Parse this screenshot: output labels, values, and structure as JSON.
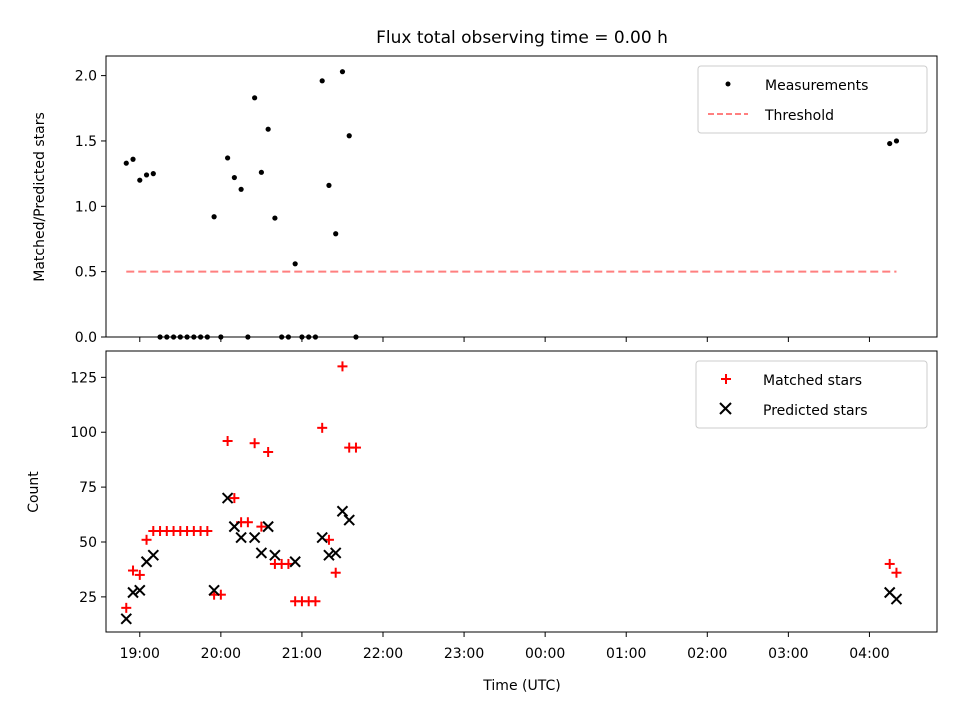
{
  "figure": {
    "title": "Flux total observing time = 0.00 h",
    "xlabel": "Time (UTC)"
  },
  "colors": {
    "measurement": "#000000",
    "threshold": "#ff7f7f",
    "matched": "#ff0000",
    "predicted": "#000000"
  },
  "chart_data": [
    {
      "type": "scatter",
      "title": "Flux total observing time = 0.00 h",
      "xlabel": "",
      "ylabel": "Matched/Predicted stars",
      "xlim": [
        "18:35",
        "04:50"
      ],
      "ylim": [
        0,
        2.15
      ],
      "yticks": [
        "0.0",
        "0.5",
        "1.0",
        "1.5",
        "2.0"
      ],
      "legend_position": "top-right",
      "series": [
        {
          "name": "Measurements",
          "marker": "dot",
          "points": [
            [
              "18:50",
              1.33
            ],
            [
              "18:55",
              1.36
            ],
            [
              "19:00",
              1.2
            ],
            [
              "19:05",
              1.24
            ],
            [
              "19:10",
              1.25
            ],
            [
              "19:15",
              0
            ],
            [
              "19:20",
              0
            ],
            [
              "19:25",
              0
            ],
            [
              "19:30",
              0
            ],
            [
              "19:35",
              0
            ],
            [
              "19:40",
              0
            ],
            [
              "19:45",
              0
            ],
            [
              "19:50",
              0
            ],
            [
              "19:55",
              0.92
            ],
            [
              "20:00",
              0
            ],
            [
              "20:05",
              1.37
            ],
            [
              "20:10",
              1.22
            ],
            [
              "20:15",
              1.13
            ],
            [
              "20:20",
              0
            ],
            [
              "20:25",
              1.83
            ],
            [
              "20:30",
              1.26
            ],
            [
              "20:35",
              1.59
            ],
            [
              "20:40",
              0.91
            ],
            [
              "20:45",
              0
            ],
            [
              "20:50",
              0
            ],
            [
              "20:55",
              0.56
            ],
            [
              "21:00",
              0
            ],
            [
              "21:05",
              0
            ],
            [
              "21:10",
              0
            ],
            [
              "21:15",
              1.96
            ],
            [
              "21:20",
              1.16
            ],
            [
              "21:25",
              0.79
            ],
            [
              "21:30",
              2.03
            ],
            [
              "21:35",
              1.54
            ],
            [
              "21:40",
              0
            ],
            [
              "04:15",
              1.48
            ],
            [
              "04:20",
              1.5
            ]
          ]
        },
        {
          "name": "Threshold",
          "marker": "dashed-line",
          "points": [
            [
              "18:50",
              0.5
            ],
            [
              "04:20",
              0.5
            ]
          ]
        }
      ]
    },
    {
      "type": "scatter",
      "xlabel": "Time (UTC)",
      "ylabel": "Count",
      "xlim": [
        "18:35",
        "04:50"
      ],
      "ylim": [
        9,
        137
      ],
      "yticks": [
        "25",
        "50",
        "75",
        "100",
        "125"
      ],
      "xticks": [
        "19:00",
        "20:00",
        "21:00",
        "22:00",
        "23:00",
        "00:00",
        "01:00",
        "02:00",
        "03:00",
        "04:00"
      ],
      "legend_position": "top-right",
      "series": [
        {
          "name": "Matched stars",
          "marker": "plus",
          "points": [
            [
              "18:50",
              20
            ],
            [
              "18:55",
              37
            ],
            [
              "19:00",
              35
            ],
            [
              "19:05",
              51
            ],
            [
              "19:10",
              55
            ],
            [
              "19:15",
              55
            ],
            [
              "19:20",
              55
            ],
            [
              "19:25",
              55
            ],
            [
              "19:30",
              55
            ],
            [
              "19:35",
              55
            ],
            [
              "19:40",
              55
            ],
            [
              "19:45",
              55
            ],
            [
              "19:50",
              55
            ],
            [
              "19:55",
              26
            ],
            [
              "20:00",
              26
            ],
            [
              "20:05",
              96
            ],
            [
              "20:10",
              70
            ],
            [
              "20:15",
              59
            ],
            [
              "20:20",
              59
            ],
            [
              "20:25",
              95
            ],
            [
              "20:30",
              57
            ],
            [
              "20:35",
              91
            ],
            [
              "20:40",
              40
            ],
            [
              "20:45",
              40
            ],
            [
              "20:50",
              40
            ],
            [
              "20:55",
              23
            ],
            [
              "21:00",
              23
            ],
            [
              "21:05",
              23
            ],
            [
              "21:10",
              23
            ],
            [
              "21:15",
              102
            ],
            [
              "21:20",
              51
            ],
            [
              "21:25",
              36
            ],
            [
              "21:30",
              130
            ],
            [
              "21:35",
              93
            ],
            [
              "21:40",
              93
            ],
            [
              "04:15",
              40
            ],
            [
              "04:20",
              36
            ]
          ]
        },
        {
          "name": "Predicted stars",
          "marker": "x",
          "points": [
            [
              "18:50",
              15
            ],
            [
              "18:55",
              27
            ],
            [
              "19:00",
              28
            ],
            [
              "19:05",
              41
            ],
            [
              "19:10",
              44
            ],
            [
              "19:55",
              28
            ],
            [
              "20:05",
              70
            ],
            [
              "20:10",
              57
            ],
            [
              "20:15",
              52
            ],
            [
              "20:25",
              52
            ],
            [
              "20:30",
              45
            ],
            [
              "20:35",
              57
            ],
            [
              "20:40",
              44
            ],
            [
              "20:55",
              41
            ],
            [
              "21:15",
              52
            ],
            [
              "21:20",
              44
            ],
            [
              "21:25",
              45
            ],
            [
              "21:30",
              64
            ],
            [
              "21:35",
              60
            ],
            [
              "04:15",
              27
            ],
            [
              "04:20",
              24
            ]
          ]
        }
      ]
    }
  ]
}
